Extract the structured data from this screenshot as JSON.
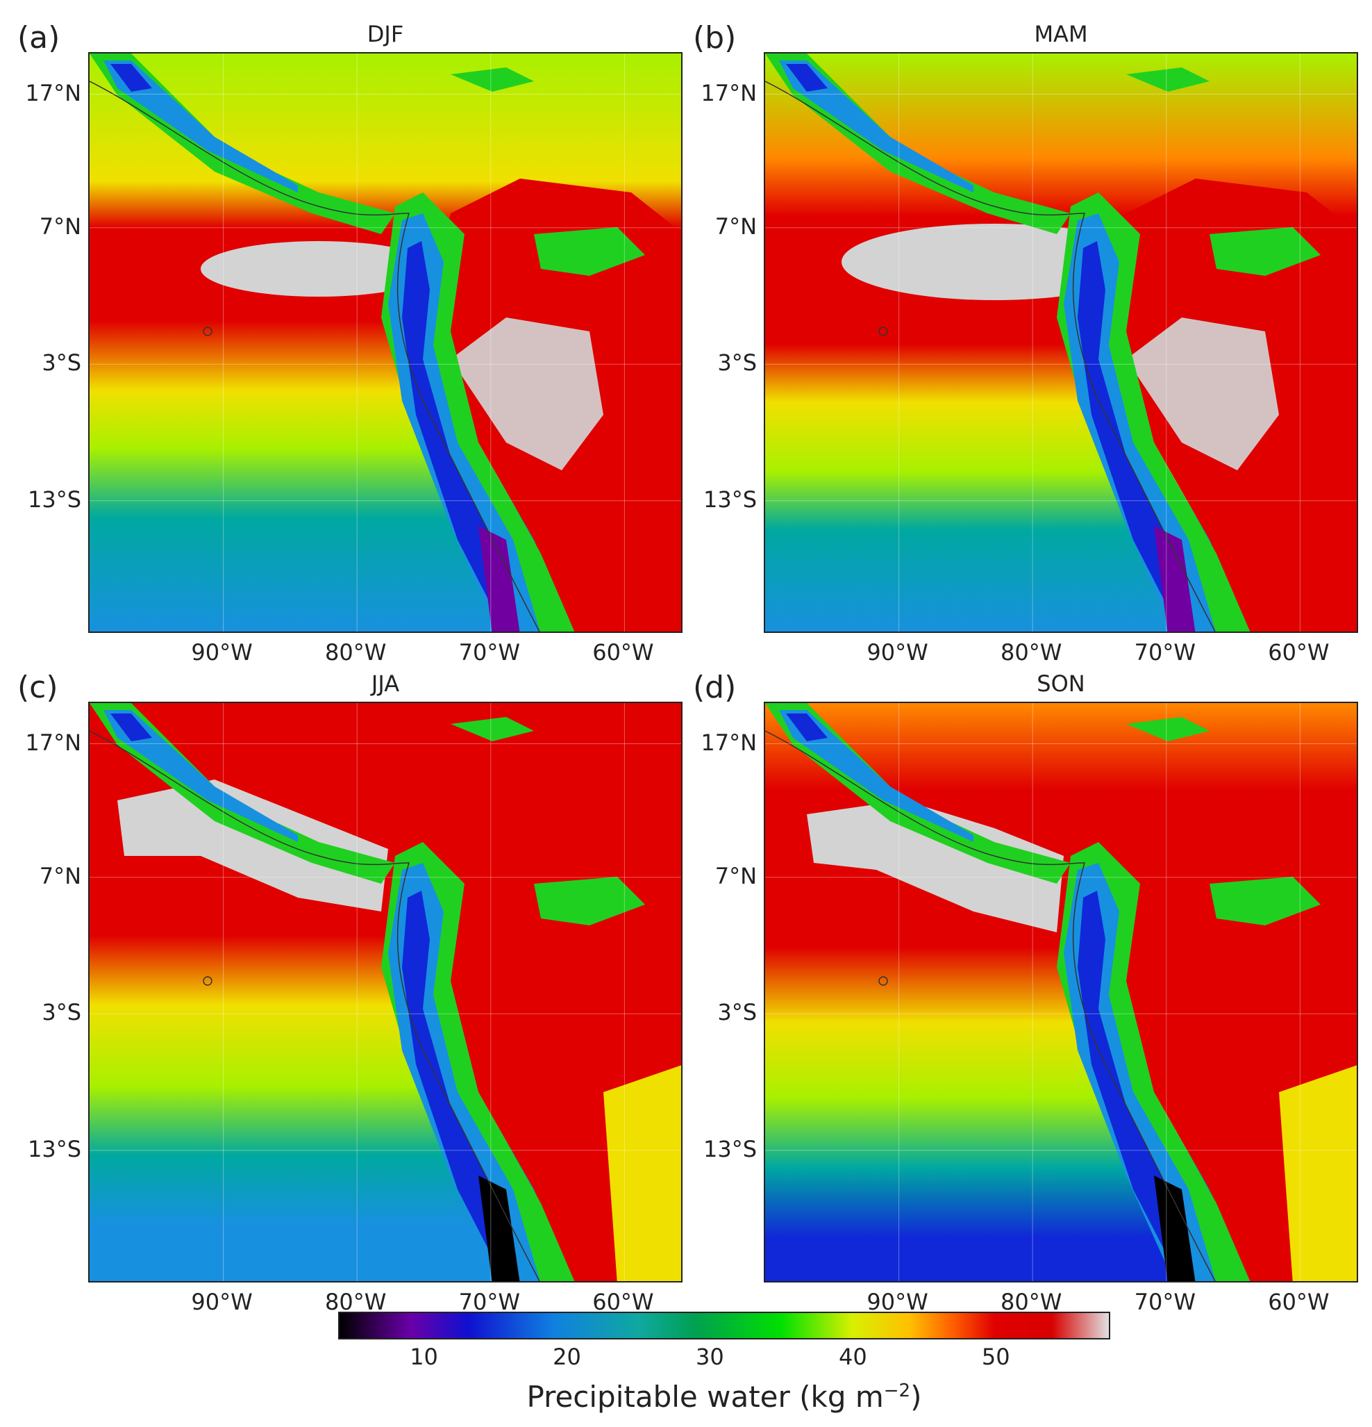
{
  "panels": [
    {
      "letter": "(a)",
      "title": "DJF",
      "variant": 0
    },
    {
      "letter": "(b)",
      "title": "MAM",
      "variant": 1
    },
    {
      "letter": "(c)",
      "title": "JJA",
      "variant": 2
    },
    {
      "letter": "(d)",
      "title": "SON",
      "variant": 3
    }
  ],
  "lat_ticks": [
    "17°N",
    "7°N",
    "3°S",
    "13°S"
  ],
  "lon_ticks": [
    "90°W",
    "80°W",
    "70°W",
    "60°W"
  ],
  "colorbar": {
    "ticks": [
      "10",
      "20",
      "30",
      "40",
      "50"
    ],
    "label_text": "Precipitable water (kg m",
    "label_exp": "−2",
    "label_close": ")",
    "range": [
      4,
      58
    ],
    "tick_values": [
      10,
      20,
      30,
      40,
      50
    ],
    "stops": [
      {
        "v": 4,
        "c": "#000000"
      },
      {
        "v": 9,
        "c": "#6a00a8"
      },
      {
        "v": 13,
        "c": "#1010d0"
      },
      {
        "v": 19,
        "c": "#1080e0"
      },
      {
        "v": 25,
        "c": "#10a8a0"
      },
      {
        "v": 29,
        "c": "#00a050"
      },
      {
        "v": 35,
        "c": "#00e000"
      },
      {
        "v": 40,
        "c": "#d8f000"
      },
      {
        "v": 44,
        "c": "#ffc000"
      },
      {
        "v": 47,
        "c": "#ff6000"
      },
      {
        "v": 50,
        "c": "#e00000"
      },
      {
        "v": 54,
        "c": "#d80000"
      },
      {
        "v": 58,
        "c": "#e0e0e0"
      }
    ]
  },
  "map_colors": {
    "grey_max": "#d3d3d3",
    "red": "#e00000",
    "orange": "#ff8800",
    "yellow": "#f0e000",
    "lime": "#a8f000",
    "green": "#20d020",
    "teal": "#00a8a0",
    "sky": "#1890e0",
    "blue": "#1028d8",
    "purple": "#7000a0",
    "black": "#000000",
    "coast": "#333333"
  }
}
